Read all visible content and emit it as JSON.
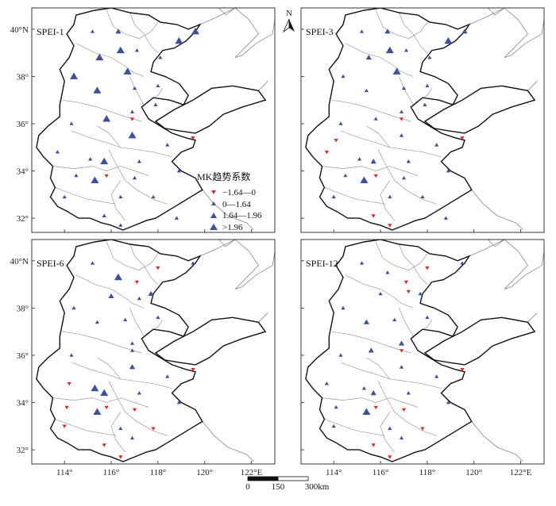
{
  "colors": {
    "up": "#3f4f9c",
    "down": "#d42a2a",
    "outline": "#111111",
    "inner": "#9a9a9a",
    "coast": "#8a8a8a"
  },
  "lat_labels": [
    "40°N",
    "38°",
    "36°",
    "34°",
    "32°"
  ],
  "lon_labels": [
    "114°",
    "116°",
    "118°",
    "120°",
    "122°E"
  ],
  "compass": {
    "label": "N"
  },
  "legend": {
    "title": "MK趋势系数",
    "items": [
      {
        "label": "−1.64—0",
        "symbol": "down-small"
      },
      {
        "label": "0—1.64",
        "symbol": "up-small"
      },
      {
        "label": "1.64—1.96",
        "symbol": "up-medium"
      },
      {
        "label": ">1.96",
        "symbol": "up-large"
      }
    ]
  },
  "scalebar": {
    "ticks": [
      "0",
      "150",
      "300km"
    ]
  },
  "panels": [
    {
      "name": "SPEI-1",
      "stations": [
        {
          "lon": 115.2,
          "lat": 39.9,
          "c": "up",
          "s": 1
        },
        {
          "lon": 116.3,
          "lat": 39.9,
          "c": "up",
          "s": 2
        },
        {
          "lon": 117.1,
          "lat": 39.1,
          "c": "up",
          "s": 1
        },
        {
          "lon": 115.5,
          "lat": 38.8,
          "c": "up",
          "s": 3
        },
        {
          "lon": 116.4,
          "lat": 39.1,
          "c": "up",
          "s": 3
        },
        {
          "lon": 118.9,
          "lat": 39.5,
          "c": "up",
          "s": 3
        },
        {
          "lon": 119.6,
          "lat": 39.9,
          "c": "up",
          "s": 3
        },
        {
          "lon": 114.4,
          "lat": 38.0,
          "c": "up",
          "s": 3
        },
        {
          "lon": 116.7,
          "lat": 38.2,
          "c": "up",
          "s": 3
        },
        {
          "lon": 115.4,
          "lat": 37.4,
          "c": "up",
          "s": 3
        },
        {
          "lon": 117.0,
          "lat": 37.5,
          "c": "up",
          "s": 1
        },
        {
          "lon": 118.0,
          "lat": 37.6,
          "c": "up",
          "s": 1
        },
        {
          "lon": 118.1,
          "lat": 38.8,
          "c": "up",
          "s": 1
        },
        {
          "lon": 117.9,
          "lat": 36.8,
          "c": "up",
          "s": 1
        },
        {
          "lon": 116.9,
          "lat": 36.5,
          "c": "up",
          "s": 1
        },
        {
          "lon": 115.8,
          "lat": 36.2,
          "c": "up",
          "s": 3
        },
        {
          "lon": 114.3,
          "lat": 36.0,
          "c": "up",
          "s": 1
        },
        {
          "lon": 116.9,
          "lat": 36.2,
          "c": "down",
          "s": 1
        },
        {
          "lon": 119.5,
          "lat": 35.4,
          "c": "down",
          "s": 1
        },
        {
          "lon": 116.9,
          "lat": 35.5,
          "c": "up",
          "s": 3
        },
        {
          "lon": 118.4,
          "lat": 35.1,
          "c": "up",
          "s": 1
        },
        {
          "lon": 113.7,
          "lat": 34.8,
          "c": "up",
          "s": 1
        },
        {
          "lon": 115.1,
          "lat": 34.5,
          "c": "up",
          "s": 1
        },
        {
          "lon": 115.7,
          "lat": 34.4,
          "c": "up",
          "s": 3
        },
        {
          "lon": 117.2,
          "lat": 34.4,
          "c": "up",
          "s": 1
        },
        {
          "lon": 118.9,
          "lat": 34.0,
          "c": "up",
          "s": 1
        },
        {
          "lon": 114.5,
          "lat": 33.8,
          "c": "up",
          "s": 1
        },
        {
          "lon": 115.3,
          "lat": 33.6,
          "c": "up",
          "s": 3
        },
        {
          "lon": 115.8,
          "lat": 33.8,
          "c": "down",
          "s": 1
        },
        {
          "lon": 117.0,
          "lat": 33.7,
          "c": "up",
          "s": 1
        },
        {
          "lon": 114.0,
          "lat": 32.9,
          "c": "up",
          "s": 1
        },
        {
          "lon": 116.4,
          "lat": 32.9,
          "c": "up",
          "s": 1
        },
        {
          "lon": 117.8,
          "lat": 32.9,
          "c": "up",
          "s": 1
        },
        {
          "lon": 115.7,
          "lat": 32.1,
          "c": "up",
          "s": 1
        },
        {
          "lon": 116.4,
          "lat": 31.7,
          "c": "up",
          "s": 1
        },
        {
          "lon": 118.8,
          "lat": 32.0,
          "c": "up",
          "s": 1
        }
      ]
    },
    {
      "name": "SPEI-3",
      "stations": [
        {
          "lon": 115.2,
          "lat": 39.9,
          "c": "up",
          "s": 1
        },
        {
          "lon": 116.3,
          "lat": 39.9,
          "c": "up",
          "s": 2
        },
        {
          "lon": 117.1,
          "lat": 39.1,
          "c": "up",
          "s": 1
        },
        {
          "lon": 115.5,
          "lat": 38.8,
          "c": "up",
          "s": 2
        },
        {
          "lon": 116.4,
          "lat": 39.1,
          "c": "up",
          "s": 3
        },
        {
          "lon": 118.9,
          "lat": 39.5,
          "c": "up",
          "s": 3
        },
        {
          "lon": 119.6,
          "lat": 39.9,
          "c": "up",
          "s": 2
        },
        {
          "lon": 114.4,
          "lat": 38.0,
          "c": "up",
          "s": 1
        },
        {
          "lon": 116.7,
          "lat": 38.2,
          "c": "up",
          "s": 3
        },
        {
          "lon": 115.4,
          "lat": 37.4,
          "c": "up",
          "s": 1
        },
        {
          "lon": 117.0,
          "lat": 37.5,
          "c": "up",
          "s": 1
        },
        {
          "lon": 118.0,
          "lat": 37.6,
          "c": "up",
          "s": 1
        },
        {
          "lon": 118.1,
          "lat": 38.8,
          "c": "up",
          "s": 1
        },
        {
          "lon": 117.9,
          "lat": 36.8,
          "c": "up",
          "s": 1
        },
        {
          "lon": 116.9,
          "lat": 36.5,
          "c": "up",
          "s": 1
        },
        {
          "lon": 115.8,
          "lat": 36.2,
          "c": "up",
          "s": 1
        },
        {
          "lon": 114.3,
          "lat": 36.0,
          "c": "up",
          "s": 1
        },
        {
          "lon": 116.9,
          "lat": 36.2,
          "c": "down",
          "s": 1
        },
        {
          "lon": 119.5,
          "lat": 35.4,
          "c": "down",
          "s": 1
        },
        {
          "lon": 116.9,
          "lat": 35.5,
          "c": "up",
          "s": 1
        },
        {
          "lon": 118.4,
          "lat": 35.1,
          "c": "up",
          "s": 1
        },
        {
          "lon": 113.7,
          "lat": 34.8,
          "c": "down",
          "s": 1
        },
        {
          "lon": 114.1,
          "lat": 35.3,
          "c": "down",
          "s": 1
        },
        {
          "lon": 115.1,
          "lat": 34.5,
          "c": "up",
          "s": 1
        },
        {
          "lon": 115.7,
          "lat": 34.4,
          "c": "up",
          "s": 2
        },
        {
          "lon": 117.2,
          "lat": 34.4,
          "c": "up",
          "s": 1
        },
        {
          "lon": 118.9,
          "lat": 34.0,
          "c": "up",
          "s": 1
        },
        {
          "lon": 114.5,
          "lat": 33.8,
          "c": "up",
          "s": 1
        },
        {
          "lon": 115.3,
          "lat": 33.6,
          "c": "up",
          "s": 3
        },
        {
          "lon": 115.8,
          "lat": 33.8,
          "c": "down",
          "s": 1
        },
        {
          "lon": 117.0,
          "lat": 33.7,
          "c": "up",
          "s": 1
        },
        {
          "lon": 114.0,
          "lat": 32.9,
          "c": "up",
          "s": 1
        },
        {
          "lon": 116.4,
          "lat": 32.9,
          "c": "up",
          "s": 1
        },
        {
          "lon": 117.8,
          "lat": 32.9,
          "c": "up",
          "s": 1
        },
        {
          "lon": 115.7,
          "lat": 32.1,
          "c": "down",
          "s": 1
        },
        {
          "lon": 116.4,
          "lat": 31.7,
          "c": "down",
          "s": 1
        },
        {
          "lon": 118.8,
          "lat": 32.0,
          "c": "up",
          "s": 1
        }
      ]
    },
    {
      "name": "SPEI-6",
      "stations": [
        {
          "lon": 115.2,
          "lat": 39.9,
          "c": "up",
          "s": 1
        },
        {
          "lon": 116.3,
          "lat": 39.3,
          "c": "up",
          "s": 3
        },
        {
          "lon": 117.1,
          "lat": 39.1,
          "c": "down",
          "s": 1
        },
        {
          "lon": 116.0,
          "lat": 38.5,
          "c": "up",
          "s": 2
        },
        {
          "lon": 117.2,
          "lat": 38.4,
          "c": "up",
          "s": 1
        },
        {
          "lon": 118.0,
          "lat": 39.7,
          "c": "down",
          "s": 1
        },
        {
          "lon": 119.5,
          "lat": 39.9,
          "c": "up",
          "s": 1
        },
        {
          "lon": 114.4,
          "lat": 38.0,
          "c": "up",
          "s": 1
        },
        {
          "lon": 117.7,
          "lat": 38.6,
          "c": "up",
          "s": 2
        },
        {
          "lon": 115.4,
          "lat": 37.4,
          "c": "up",
          "s": 1
        },
        {
          "lon": 116.6,
          "lat": 37.5,
          "c": "up",
          "s": 1
        },
        {
          "lon": 118.0,
          "lat": 37.6,
          "c": "up",
          "s": 1
        },
        {
          "lon": 116.9,
          "lat": 36.5,
          "c": "up",
          "s": 1
        },
        {
          "lon": 114.3,
          "lat": 36.0,
          "c": "up",
          "s": 1
        },
        {
          "lon": 116.9,
          "lat": 36.2,
          "c": "up",
          "s": 1
        },
        {
          "lon": 119.5,
          "lat": 35.4,
          "c": "down",
          "s": 1
        },
        {
          "lon": 116.9,
          "lat": 35.5,
          "c": "up",
          "s": 2
        },
        {
          "lon": 118.4,
          "lat": 35.1,
          "c": "up",
          "s": 1
        },
        {
          "lon": 114.2,
          "lat": 34.8,
          "c": "down",
          "s": 1
        },
        {
          "lon": 115.3,
          "lat": 34.6,
          "c": "up",
          "s": 3
        },
        {
          "lon": 115.7,
          "lat": 34.4,
          "c": "up",
          "s": 3
        },
        {
          "lon": 117.2,
          "lat": 34.4,
          "c": "up",
          "s": 1
        },
        {
          "lon": 118.9,
          "lat": 34.0,
          "c": "up",
          "s": 1
        },
        {
          "lon": 114.1,
          "lat": 33.8,
          "c": "down",
          "s": 1
        },
        {
          "lon": 115.4,
          "lat": 33.6,
          "c": "up",
          "s": 3
        },
        {
          "lon": 115.8,
          "lat": 33.8,
          "c": "down",
          "s": 1
        },
        {
          "lon": 117.0,
          "lat": 33.7,
          "c": "down",
          "s": 1
        },
        {
          "lon": 114.0,
          "lat": 33.0,
          "c": "down",
          "s": 1
        },
        {
          "lon": 116.4,
          "lat": 32.9,
          "c": "up",
          "s": 1
        },
        {
          "lon": 117.8,
          "lat": 32.9,
          "c": "down",
          "s": 1
        },
        {
          "lon": 115.7,
          "lat": 32.2,
          "c": "down",
          "s": 1
        },
        {
          "lon": 116.4,
          "lat": 31.7,
          "c": "down",
          "s": 1
        },
        {
          "lon": 116.9,
          "lat": 32.5,
          "c": "up",
          "s": 1
        }
      ]
    },
    {
      "name": "SPEI-12",
      "stations": [
        {
          "lon": 115.2,
          "lat": 39.9,
          "c": "up",
          "s": 1
        },
        {
          "lon": 116.3,
          "lat": 39.5,
          "c": "up",
          "s": 1
        },
        {
          "lon": 117.1,
          "lat": 39.1,
          "c": "down",
          "s": 1
        },
        {
          "lon": 116.0,
          "lat": 38.6,
          "c": "up",
          "s": 1
        },
        {
          "lon": 117.2,
          "lat": 38.7,
          "c": "down",
          "s": 1
        },
        {
          "lon": 118.0,
          "lat": 39.7,
          "c": "down",
          "s": 1
        },
        {
          "lon": 119.5,
          "lat": 39.9,
          "c": "up",
          "s": 1
        },
        {
          "lon": 114.4,
          "lat": 38.0,
          "c": "up",
          "s": 1
        },
        {
          "lon": 117.7,
          "lat": 38.6,
          "c": "up",
          "s": 1
        },
        {
          "lon": 115.4,
          "lat": 37.4,
          "c": "up",
          "s": 2
        },
        {
          "lon": 116.6,
          "lat": 37.5,
          "c": "up",
          "s": 1
        },
        {
          "lon": 118.0,
          "lat": 37.6,
          "c": "up",
          "s": 1
        },
        {
          "lon": 116.9,
          "lat": 36.5,
          "c": "up",
          "s": 2
        },
        {
          "lon": 115.6,
          "lat": 36.2,
          "c": "up",
          "s": 2
        },
        {
          "lon": 116.9,
          "lat": 36.2,
          "c": "down",
          "s": 1
        },
        {
          "lon": 114.3,
          "lat": 36.0,
          "c": "up",
          "s": 1
        },
        {
          "lon": 119.5,
          "lat": 35.4,
          "c": "down",
          "s": 1
        },
        {
          "lon": 116.9,
          "lat": 35.5,
          "c": "up",
          "s": 1
        },
        {
          "lon": 118.4,
          "lat": 35.1,
          "c": "up",
          "s": 1
        },
        {
          "lon": 113.7,
          "lat": 34.8,
          "c": "up",
          "s": 1
        },
        {
          "lon": 115.3,
          "lat": 34.6,
          "c": "up",
          "s": 1
        },
        {
          "lon": 115.7,
          "lat": 34.4,
          "c": "up",
          "s": 2
        },
        {
          "lon": 117.2,
          "lat": 34.4,
          "c": "up",
          "s": 1
        },
        {
          "lon": 118.9,
          "lat": 34.0,
          "c": "up",
          "s": 1
        },
        {
          "lon": 114.1,
          "lat": 33.8,
          "c": "up",
          "s": 1
        },
        {
          "lon": 115.4,
          "lat": 33.6,
          "c": "up",
          "s": 3
        },
        {
          "lon": 115.8,
          "lat": 33.8,
          "c": "down",
          "s": 1
        },
        {
          "lon": 117.0,
          "lat": 33.7,
          "c": "down",
          "s": 1
        },
        {
          "lon": 114.0,
          "lat": 33.0,
          "c": "up",
          "s": 1
        },
        {
          "lon": 116.4,
          "lat": 32.9,
          "c": "up",
          "s": 1
        },
        {
          "lon": 117.8,
          "lat": 32.9,
          "c": "down",
          "s": 1
        },
        {
          "lon": 115.7,
          "lat": 32.2,
          "c": "down",
          "s": 1
        },
        {
          "lon": 116.4,
          "lat": 31.7,
          "c": "down",
          "s": 1
        },
        {
          "lon": 116.9,
          "lat": 32.5,
          "c": "up",
          "s": 1
        }
      ]
    }
  ]
}
